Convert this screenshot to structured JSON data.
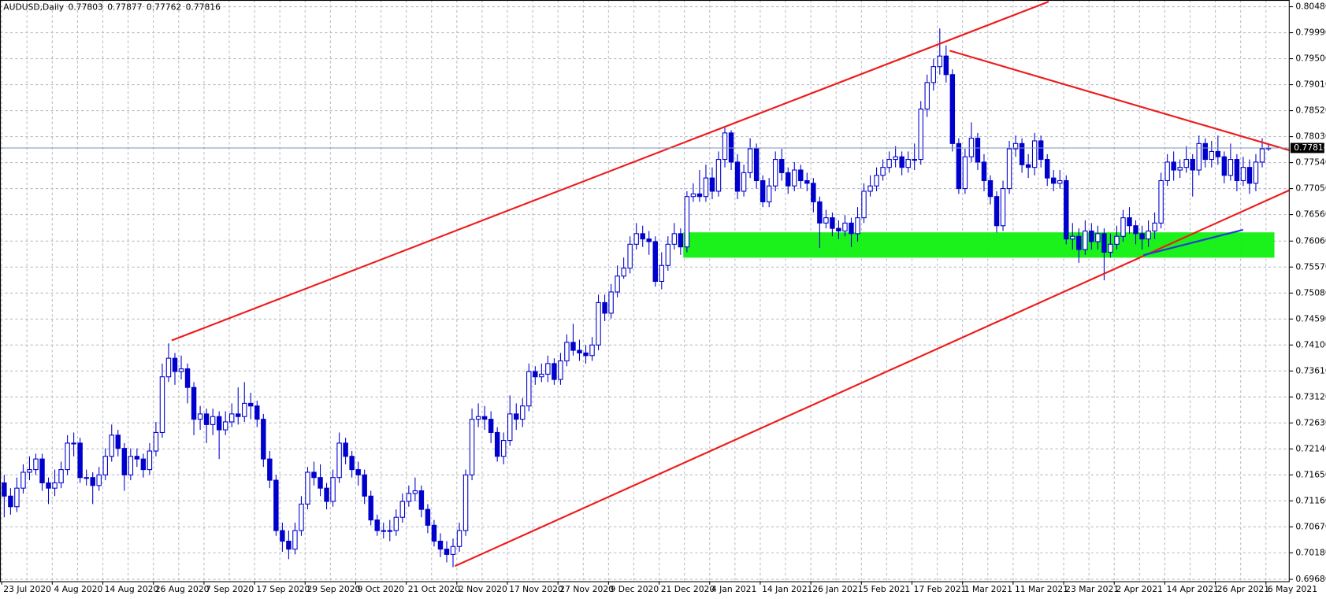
{
  "chart_data": {
    "type": "candlestick",
    "title": "AUDUSD,Daily",
    "color": "#0000cd",
    "up_fill": "#ffffff",
    "grid": true,
    "ylim": [
      0.69644,
      0.80607
    ],
    "yticks": [
      {
        "value": 0.8048,
        "label": "0.80480"
      },
      {
        "value": 0.7999,
        "label": "0.79990"
      },
      {
        "value": 0.795,
        "label": "0.79500"
      },
      {
        "value": 0.7901,
        "label": "0.79010"
      },
      {
        "value": 0.7852,
        "label": "0.78520"
      },
      {
        "value": 0.7803,
        "label": "0.78030"
      },
      {
        "value": 0.7754,
        "label": "0.77540"
      },
      {
        "value": 0.7705,
        "label": "0.77050"
      },
      {
        "value": 0.7656,
        "label": "0.76560"
      },
      {
        "value": 0.7606,
        "label": "0.76060"
      },
      {
        "value": 0.7557,
        "label": "0.75570"
      },
      {
        "value": 0.7508,
        "label": "0.75080"
      },
      {
        "value": 0.7459,
        "label": "0.74590"
      },
      {
        "value": 0.741,
        "label": "0.74100"
      },
      {
        "value": 0.7361,
        "label": "0.73610"
      },
      {
        "value": 0.7312,
        "label": "0.73120"
      },
      {
        "value": 0.7263,
        "label": "0.72630"
      },
      {
        "value": 0.7214,
        "label": "0.72140"
      },
      {
        "value": 0.7165,
        "label": "0.71650"
      },
      {
        "value": 0.7116,
        "label": "0.71160"
      },
      {
        "value": 0.7067,
        "label": "0.70670"
      },
      {
        "value": 0.7018,
        "label": "0.70180"
      },
      {
        "value": 0.6968,
        "label": "0.69680"
      }
    ],
    "categories": [
      "23 Jul 2020",
      null,
      null,
      null,
      null,
      null,
      null,
      null,
      "4 Aug 2020",
      null,
      null,
      null,
      null,
      null,
      null,
      null,
      "14 Aug 2020",
      null,
      null,
      null,
      null,
      null,
      null,
      null,
      "26 Aug 2020",
      null,
      null,
      null,
      null,
      null,
      null,
      null,
      "7 Sep 2020",
      null,
      null,
      null,
      null,
      null,
      null,
      null,
      "17 Sep 2020",
      null,
      null,
      null,
      null,
      null,
      null,
      null,
      "29 Sep 2020",
      null,
      null,
      null,
      null,
      null,
      null,
      null,
      "9 Oct 2020",
      null,
      null,
      null,
      null,
      null,
      null,
      null,
      "21 Oct 2020",
      null,
      null,
      null,
      null,
      null,
      null,
      null,
      "2 Nov 2020",
      null,
      null,
      null,
      null,
      null,
      null,
      null,
      "17 Nov 2020",
      null,
      null,
      null,
      null,
      null,
      null,
      null,
      "27 Nov 2020",
      null,
      null,
      null,
      null,
      null,
      null,
      null,
      "9 Dec 2020",
      null,
      null,
      null,
      null,
      null,
      null,
      null,
      "21 Dec 2020",
      null,
      null,
      null,
      null,
      null,
      null,
      null,
      "4 Jan 2021",
      null,
      null,
      null,
      null,
      null,
      null,
      null,
      "14 Jan 2021",
      null,
      null,
      null,
      null,
      null,
      null,
      null,
      "26 Jan 2021",
      null,
      null,
      null,
      null,
      null,
      null,
      null,
      "5 Feb 2021",
      null,
      null,
      null,
      null,
      null,
      null,
      null,
      "17 Feb 2021",
      null,
      null,
      null,
      null,
      null,
      null,
      null,
      "1 Mar 2021",
      null,
      null,
      null,
      null,
      null,
      null,
      null,
      "11 Mar 2021",
      null,
      null,
      null,
      null,
      null,
      null,
      null,
      "23 Mar 2021",
      null,
      null,
      null,
      null,
      null,
      null,
      null,
      "2 Apr 2021",
      null,
      null,
      null,
      null,
      null,
      null,
      null,
      "14 Apr 2021",
      null,
      null,
      null,
      null,
      null,
      null,
      null,
      "26 Apr 2021",
      null,
      null,
      null,
      null,
      null,
      null,
      null,
      "6 May 2021"
    ],
    "open": [
      0.715,
      0.7125,
      0.7105,
      0.714,
      0.717,
      0.7175,
      0.7195,
      0.715,
      0.714,
      0.715,
      0.7175,
      0.7225,
      0.7225,
      0.716,
      0.716,
      0.7145,
      0.7165,
      0.72,
      0.724,
      0.7215,
      0.7165,
      0.72,
      0.7195,
      0.7175,
      0.721,
      0.7245,
      0.735,
      0.7385,
      0.736,
      0.7365,
      0.733,
      0.727,
      0.728,
      0.726,
      0.7275,
      0.725,
      0.7265,
      0.728,
      0.7275,
      0.73,
      0.7295,
      0.727,
      0.7195,
      0.7155,
      0.706,
      0.704,
      0.7025,
      0.706,
      0.711,
      0.717,
      0.716,
      0.714,
      0.7115,
      0.716,
      0.7225,
      0.72,
      0.7175,
      0.7165,
      0.7125,
      0.708,
      0.706,
      0.706,
      0.706,
      0.7085,
      0.7115,
      0.713,
      0.7135,
      0.71,
      0.707,
      0.704,
      0.7025,
      0.7015,
      0.703,
      0.706,
      0.7165,
      0.727,
      0.7275,
      0.727,
      0.7245,
      0.72,
      0.723,
      0.728,
      0.727,
      0.7295,
      0.736,
      0.735,
      0.7355,
      0.7375,
      0.7345,
      0.738,
      0.7415,
      0.74,
      0.7395,
      0.739,
      0.741,
      0.749,
      0.747,
      0.751,
      0.754,
      0.7555,
      0.76,
      0.762,
      0.761,
      0.7605,
      0.753,
      0.756,
      0.76,
      0.762,
      0.7595,
      0.769,
      0.7695,
      0.769,
      0.7725,
      0.77,
      0.776,
      0.781,
      0.7755,
      0.77,
      0.7735,
      0.778,
      0.772,
      0.768,
      0.771,
      0.776,
      0.7735,
      0.771,
      0.774,
      0.772,
      0.7715,
      0.768,
      0.764,
      0.765,
      0.763,
      0.7625,
      0.764,
      0.762,
      0.765,
      0.77,
      0.771,
      0.773,
      0.7745,
      0.776,
      0.7765,
      0.7745,
      0.776,
      0.776,
      0.7855,
      0.7905,
      0.7935,
      0.7955,
      0.792,
      0.779,
      0.7705,
      0.7765,
      0.78,
      0.7755,
      0.772,
      0.769,
      0.7635,
      0.7705,
      0.778,
      0.779,
      0.775,
      0.7745,
      0.7795,
      0.776,
      0.7725,
      0.7715,
      0.772,
      0.761,
      0.7615,
      0.759,
      0.7625,
      0.7605,
      0.762,
      0.7585,
      0.76,
      0.7615,
      0.765,
      0.7635,
      0.762,
      0.761,
      0.7625,
      0.764,
      0.772,
      0.7755,
      0.774,
      0.7745,
      0.776,
      0.774,
      0.779,
      0.776,
      0.7775,
      0.7765,
      0.773,
      0.776,
      0.772,
      0.7745,
      0.7715,
      0.7755,
      0.77803
    ],
    "high": [
      0.7165,
      0.714,
      0.716,
      0.7185,
      0.72,
      0.7205,
      0.7205,
      0.716,
      0.7175,
      0.719,
      0.724,
      0.7245,
      0.7235,
      0.7175,
      0.717,
      0.718,
      0.7215,
      0.726,
      0.725,
      0.7225,
      0.7215,
      0.7215,
      0.7205,
      0.7225,
      0.7265,
      0.7375,
      0.7413,
      0.7395,
      0.739,
      0.7375,
      0.734,
      0.7295,
      0.729,
      0.729,
      0.7285,
      0.7285,
      0.73,
      0.733,
      0.734,
      0.732,
      0.7305,
      0.728,
      0.721,
      0.7165,
      0.7075,
      0.706,
      0.7075,
      0.7125,
      0.718,
      0.719,
      0.7185,
      0.715,
      0.7175,
      0.7245,
      0.7235,
      0.721,
      0.719,
      0.7175,
      0.7135,
      0.709,
      0.7075,
      0.708,
      0.71,
      0.713,
      0.7145,
      0.716,
      0.7145,
      0.711,
      0.708,
      0.7055,
      0.704,
      0.7045,
      0.7075,
      0.7175,
      0.729,
      0.73,
      0.7295,
      0.7285,
      0.7255,
      0.7245,
      0.7315,
      0.73,
      0.731,
      0.7375,
      0.737,
      0.7375,
      0.739,
      0.7385,
      0.7395,
      0.743,
      0.745,
      0.742,
      0.741,
      0.7425,
      0.7505,
      0.7505,
      0.7525,
      0.756,
      0.7575,
      0.7615,
      0.764,
      0.7635,
      0.7625,
      0.7615,
      0.7585,
      0.7615,
      0.764,
      0.763,
      0.77,
      0.7715,
      0.774,
      0.775,
      0.7745,
      0.7775,
      0.782,
      0.7815,
      0.777,
      0.775,
      0.78,
      0.779,
      0.773,
      0.7725,
      0.7775,
      0.778,
      0.7745,
      0.7755,
      0.775,
      0.7735,
      0.7725,
      0.769,
      0.7665,
      0.766,
      0.7645,
      0.7655,
      0.765,
      0.767,
      0.7715,
      0.773,
      0.7745,
      0.776,
      0.7775,
      0.7785,
      0.7775,
      0.7775,
      0.779,
      0.787,
      0.792,
      0.795,
      0.8007,
      0.7975,
      0.793,
      0.78,
      0.778,
      0.783,
      0.781,
      0.777,
      0.773,
      0.77,
      0.772,
      0.7795,
      0.7805,
      0.78,
      0.777,
      0.781,
      0.7805,
      0.777,
      0.774,
      0.774,
      0.773,
      0.764,
      0.763,
      0.7645,
      0.764,
      0.7635,
      0.763,
      0.762,
      0.7635,
      0.7665,
      0.767,
      0.7645,
      0.7635,
      0.7645,
      0.766,
      0.7735,
      0.777,
      0.7775,
      0.776,
      0.7785,
      0.777,
      0.7805,
      0.78,
      0.7795,
      0.7805,
      0.7775,
      0.779,
      0.777,
      0.7765,
      0.776,
      0.777,
      0.78,
      0.77877
    ],
    "low": [
      0.7085,
      0.709,
      0.7095,
      0.713,
      0.7155,
      0.7165,
      0.7135,
      0.711,
      0.7125,
      0.714,
      0.7165,
      0.72,
      0.715,
      0.7145,
      0.711,
      0.7135,
      0.7155,
      0.719,
      0.72,
      0.7135,
      0.7155,
      0.718,
      0.716,
      0.7165,
      0.72,
      0.7235,
      0.734,
      0.7335,
      0.7345,
      0.73,
      0.724,
      0.725,
      0.7225,
      0.724,
      0.7195,
      0.724,
      0.7255,
      0.726,
      0.7265,
      0.727,
      0.7255,
      0.718,
      0.714,
      0.705,
      0.702,
      0.7006,
      0.7015,
      0.705,
      0.71,
      0.7145,
      0.7125,
      0.71,
      0.7105,
      0.715,
      0.7185,
      0.716,
      0.7145,
      0.711,
      0.707,
      0.705,
      0.7045,
      0.704,
      0.705,
      0.7075,
      0.7105,
      0.7115,
      0.7085,
      0.7055,
      0.703,
      0.701,
      0.7,
      0.6991,
      0.702,
      0.705,
      0.7155,
      0.7255,
      0.725,
      0.7225,
      0.719,
      0.7185,
      0.722,
      0.725,
      0.7255,
      0.7285,
      0.7335,
      0.734,
      0.734,
      0.7335,
      0.7335,
      0.737,
      0.739,
      0.738,
      0.7375,
      0.738,
      0.74,
      0.7455,
      0.746,
      0.75,
      0.7535,
      0.7545,
      0.759,
      0.7595,
      0.758,
      0.752,
      0.7515,
      0.755,
      0.759,
      0.758,
      0.7585,
      0.768,
      0.768,
      0.768,
      0.7685,
      0.769,
      0.7745,
      0.774,
      0.7685,
      0.769,
      0.7725,
      0.7705,
      0.767,
      0.767,
      0.77,
      0.772,
      0.7695,
      0.77,
      0.7705,
      0.77,
      0.766,
      0.7593,
      0.763,
      0.7615,
      0.761,
      0.7615,
      0.7595,
      0.7605,
      0.764,
      0.769,
      0.77,
      0.772,
      0.7735,
      0.7745,
      0.773,
      0.7735,
      0.774,
      0.775,
      0.784,
      0.789,
      0.792,
      0.7905,
      0.7775,
      0.7695,
      0.7695,
      0.7755,
      0.774,
      0.77,
      0.7675,
      0.7622,
      0.7625,
      0.7695,
      0.7765,
      0.7735,
      0.7725,
      0.773,
      0.7745,
      0.771,
      0.77,
      0.7705,
      0.76,
      0.759,
      0.7565,
      0.758,
      0.759,
      0.759,
      0.7532,
      0.7575,
      0.759,
      0.7605,
      0.762,
      0.76,
      0.759,
      0.7595,
      0.761,
      0.763,
      0.771,
      0.772,
      0.7725,
      0.7735,
      0.769,
      0.773,
      0.7745,
      0.7745,
      0.775,
      0.7715,
      0.772,
      0.77,
      0.771,
      0.7695,
      0.77,
      0.7745,
      0.77762
    ],
    "close": [
      0.7125,
      0.7105,
      0.714,
      0.717,
      0.7175,
      0.7195,
      0.715,
      0.714,
      0.715,
      0.7175,
      0.7225,
      0.7225,
      0.716,
      0.716,
      0.7145,
      0.7165,
      0.72,
      0.724,
      0.7215,
      0.7165,
      0.72,
      0.7195,
      0.7175,
      0.721,
      0.7245,
      0.735,
      0.7385,
      0.736,
      0.7365,
      0.733,
      0.727,
      0.728,
      0.726,
      0.7275,
      0.725,
      0.7265,
      0.728,
      0.7275,
      0.73,
      0.7295,
      0.727,
      0.7195,
      0.7155,
      0.706,
      0.704,
      0.7025,
      0.706,
      0.711,
      0.717,
      0.716,
      0.714,
      0.7115,
      0.716,
      0.7225,
      0.72,
      0.7175,
      0.7165,
      0.7125,
      0.708,
      0.706,
      0.706,
      0.706,
      0.7085,
      0.7115,
      0.713,
      0.7135,
      0.71,
      0.707,
      0.704,
      0.7025,
      0.7015,
      0.703,
      0.706,
      0.7165,
      0.727,
      0.7275,
      0.727,
      0.7245,
      0.72,
      0.723,
      0.728,
      0.727,
      0.7295,
      0.736,
      0.735,
      0.7355,
      0.7375,
      0.7345,
      0.738,
      0.7415,
      0.74,
      0.7395,
      0.739,
      0.741,
      0.749,
      0.747,
      0.751,
      0.754,
      0.7555,
      0.76,
      0.762,
      0.761,
      0.7605,
      0.753,
      0.756,
      0.76,
      0.762,
      0.7595,
      0.769,
      0.7695,
      0.769,
      0.7725,
      0.77,
      0.776,
      0.781,
      0.7755,
      0.77,
      0.7735,
      0.778,
      0.772,
      0.768,
      0.771,
      0.776,
      0.7735,
      0.771,
      0.774,
      0.772,
      0.7715,
      0.768,
      0.764,
      0.765,
      0.763,
      0.7625,
      0.764,
      0.762,
      0.765,
      0.77,
      0.771,
      0.773,
      0.7745,
      0.776,
      0.7765,
      0.7745,
      0.776,
      0.776,
      0.7855,
      0.7905,
      0.7935,
      0.7955,
      0.792,
      0.779,
      0.7705,
      0.7765,
      0.78,
      0.7755,
      0.772,
      0.769,
      0.7635,
      0.7705,
      0.778,
      0.779,
      0.775,
      0.7745,
      0.7795,
      0.776,
      0.7725,
      0.7715,
      0.772,
      0.761,
      0.7615,
      0.759,
      0.7625,
      0.7605,
      0.762,
      0.7585,
      0.76,
      0.7615,
      0.765,
      0.7635,
      0.762,
      0.761,
      0.7625,
      0.764,
      0.772,
      0.7755,
      0.774,
      0.7745,
      0.776,
      0.774,
      0.779,
      0.776,
      0.7775,
      0.7765,
      0.773,
      0.776,
      0.772,
      0.7745,
      0.7715,
      0.7755,
      0.778,
      0.77816
    ]
  }
}
